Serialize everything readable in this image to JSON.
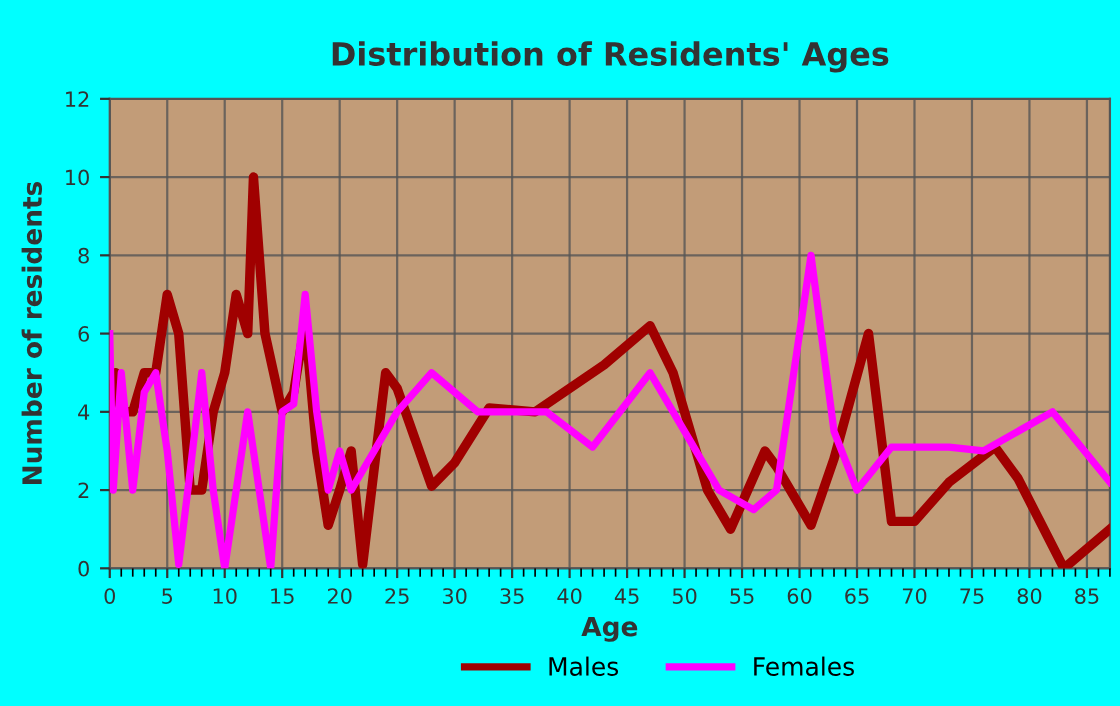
{
  "chart_data": {
    "type": "line",
    "title": "Distribution of Residents' Ages",
    "xlabel": "Age",
    "ylabel": "Number of residents",
    "xlim": [
      0,
      87
    ],
    "xticks": [
      0,
      5,
      10,
      15,
      20,
      25,
      30,
      35,
      40,
      45,
      50,
      55,
      60,
      65,
      70,
      75,
      80,
      85
    ],
    "ylim": [
      0,
      12
    ],
    "yticks": [
      0,
      2,
      4,
      6,
      8,
      10,
      12
    ],
    "grid": true,
    "legend": "bottom",
    "marker": "none",
    "line_style": "solid",
    "series": [
      {
        "name": "Males",
        "color": "#a00000",
        "x": [
          0,
          0.5,
          1,
          2,
          3,
          4,
          5,
          6,
          7,
          8,
          9,
          10,
          11,
          12,
          12.5,
          13.5,
          15,
          16,
          17,
          18,
          19,
          20,
          21,
          22,
          24,
          25,
          28,
          30,
          33,
          37,
          43,
          47,
          49,
          52,
          54,
          57,
          58,
          61,
          63,
          66,
          68,
          70,
          73,
          77,
          79,
          83,
          87
        ],
        "values": [
          4,
          5,
          4,
          4,
          5,
          5,
          7,
          6,
          2,
          2,
          4,
          5,
          7,
          6,
          10,
          6,
          4,
          4.5,
          6.3,
          3,
          1.1,
          2,
          3,
          0.1,
          5,
          4.6,
          2.1,
          2.7,
          4.1,
          4,
          5.2,
          6.2,
          5,
          2,
          1,
          3,
          2.6,
          1.1,
          2.8,
          6,
          1.2,
          1.2,
          2.2,
          3.1,
          2.3,
          0,
          1
        ]
      },
      {
        "name": "Females",
        "color": "#ff00ff",
        "x": [
          0,
          0.3,
          1,
          2,
          3,
          4,
          5,
          6,
          7,
          8,
          9,
          10,
          11,
          12,
          13,
          14,
          15,
          16,
          17,
          18,
          19,
          20,
          21,
          22,
          25,
          28,
          32,
          38,
          42,
          47,
          50,
          53,
          56,
          58,
          61,
          63,
          65,
          68,
          73,
          76,
          82,
          87
        ],
        "values": [
          6,
          2,
          5,
          2,
          4.5,
          5,
          3,
          0.1,
          2.5,
          5,
          2,
          0,
          2,
          4,
          2,
          0,
          4,
          4.2,
          7,
          4,
          2,
          3,
          2,
          2.5,
          4,
          5,
          4,
          4,
          3.1,
          5,
          3.5,
          2,
          1.5,
          2,
          8,
          3.5,
          2,
          3.1,
          3.1,
          3,
          4,
          2.2
        ]
      }
    ]
  }
}
